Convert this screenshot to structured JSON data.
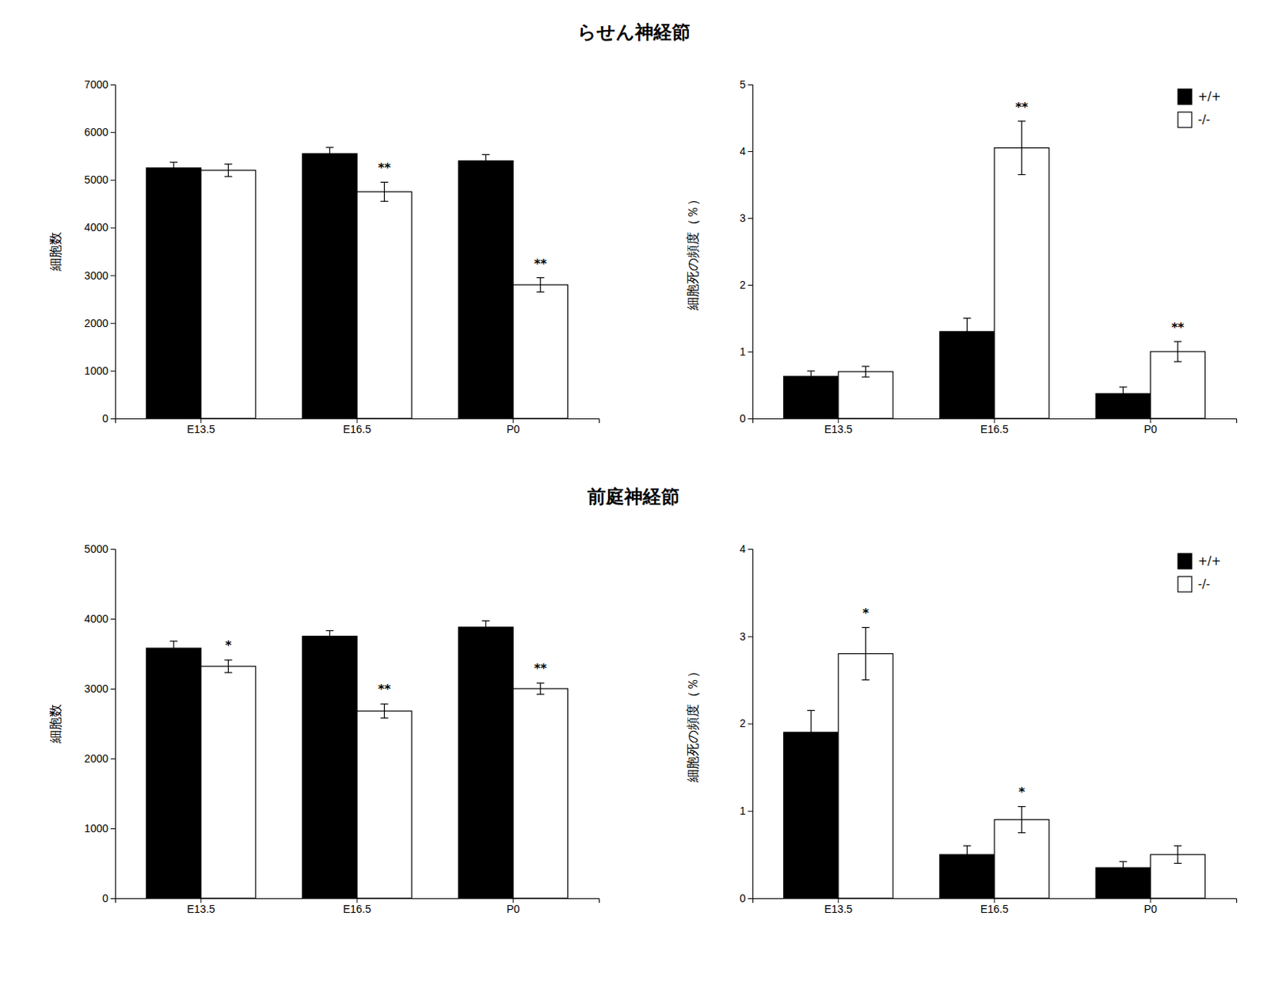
{
  "chart_data": [
    {
      "type": "bar",
      "title": "らせん神経節",
      "categories": [
        "E13.5",
        "E16.5",
        "P0"
      ],
      "ylabel": "細胞数",
      "ylim": [
        0,
        7000
      ],
      "yticks": [
        0,
        1000,
        2000,
        3000,
        4000,
        5000,
        6000,
        7000
      ],
      "series": [
        {
          "name": "+/+",
          "color": "#000000",
          "values": [
            5250,
            5550,
            5400
          ],
          "errors": [
            120,
            130,
            130
          ]
        },
        {
          "name": "-/-",
          "color": "#ffffff",
          "values": [
            5200,
            4750,
            2800
          ],
          "errors": [
            130,
            200,
            150
          ],
          "significance": [
            null,
            "**",
            "**"
          ]
        }
      ]
    },
    {
      "type": "bar",
      "categories": [
        "E13.5",
        "E16.5",
        "P0"
      ],
      "ylabel": "細胞死の頻度（％）",
      "ylim": [
        0,
        5
      ],
      "yticks": [
        0,
        1,
        2,
        3,
        4,
        5
      ],
      "legend": "upper right",
      "series": [
        {
          "name": "+/+",
          "color": "#000000",
          "values": [
            0.63,
            1.3,
            0.37
          ],
          "errors": [
            0.08,
            0.2,
            0.1
          ]
        },
        {
          "name": "-/-",
          "color": "#ffffff",
          "values": [
            0.7,
            4.05,
            1.0
          ],
          "errors": [
            0.08,
            0.4,
            0.15
          ],
          "significance": [
            null,
            "**",
            "**"
          ]
        }
      ]
    },
    {
      "type": "bar",
      "title": "前庭神経節",
      "categories": [
        "E13.5",
        "E16.5",
        "P0"
      ],
      "ylabel": "細胞数",
      "ylim": [
        0,
        5000
      ],
      "yticks": [
        0,
        1000,
        2000,
        3000,
        4000,
        5000
      ],
      "series": [
        {
          "name": "+/+",
          "color": "#000000",
          "values": [
            3580,
            3750,
            3880
          ],
          "errors": [
            100,
            80,
            90
          ]
        },
        {
          "name": "-/-",
          "color": "#ffffff",
          "values": [
            3320,
            2680,
            3000
          ],
          "errors": [
            90,
            100,
            80
          ],
          "significance": [
            "*",
            "**",
            "**"
          ]
        }
      ]
    },
    {
      "type": "bar",
      "categories": [
        "E13.5",
        "E16.5",
        "P0"
      ],
      "ylabel": "細胞死の頻度（％）",
      "ylim": [
        0,
        4
      ],
      "yticks": [
        0,
        1,
        2,
        3,
        4
      ],
      "legend": "upper right",
      "series": [
        {
          "name": "+/+",
          "color": "#000000",
          "values": [
            1.9,
            0.5,
            0.35
          ],
          "errors": [
            0.25,
            0.1,
            0.07
          ]
        },
        {
          "name": "-/-",
          "color": "#ffffff",
          "values": [
            2.8,
            0.9,
            0.5
          ],
          "errors": [
            0.3,
            0.15,
            0.1
          ],
          "significance": [
            "*",
            "*",
            null
          ]
        }
      ]
    }
  ]
}
